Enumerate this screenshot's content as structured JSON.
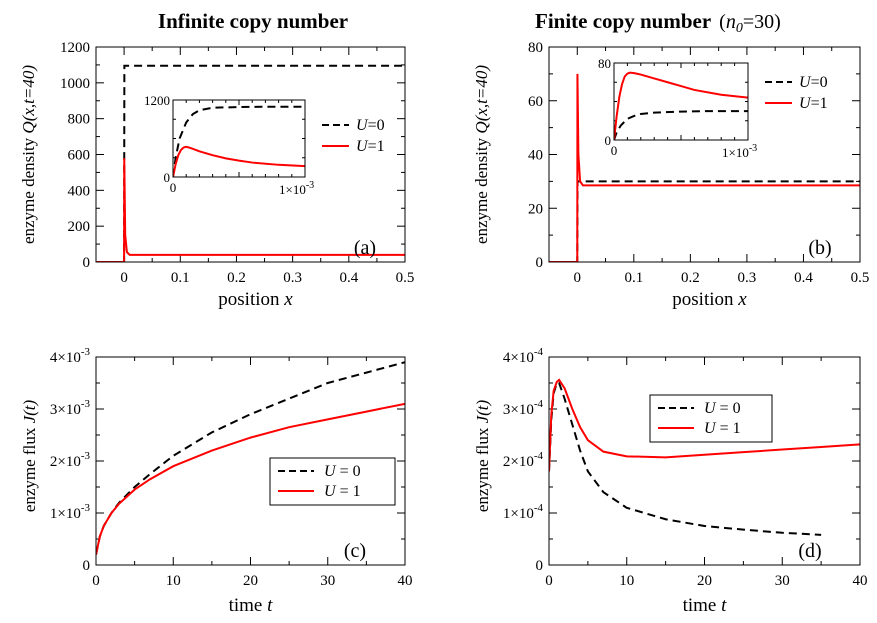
{
  "titles": {
    "left": "Infinite copy number",
    "right_main": "Finite copy number",
    "right_param": "(n0=30)"
  },
  "chart_data": [
    {
      "id": "a",
      "type": "line",
      "panel_label": "(a)",
      "xlabel": "position  x",
      "ylabel": "enzyme density  Q(x,t=40)",
      "xlim": [
        -0.05,
        0.5
      ],
      "ylim": [
        0,
        1200
      ],
      "xticks": [
        "0",
        "0.1",
        "0.2",
        "0.3",
        "0.4",
        "0.5"
      ],
      "yticks": [
        "0",
        "200",
        "400",
        "600",
        "800",
        "1000",
        "1200"
      ],
      "legend": "right",
      "series": [
        {
          "name": "U=0",
          "style": "dashed",
          "color": "#000000",
          "x": [
            -0.05,
            -0.0005,
            0.0,
            0.0005,
            0.5
          ],
          "y": [
            0,
            0,
            0,
            1095,
            1095
          ]
        },
        {
          "name": "U=1",
          "style": "solid",
          "color": "#ff0000",
          "x": [
            -0.05,
            -0.0005,
            0.0,
            0.0003,
            0.002,
            0.005,
            0.01,
            0.5
          ],
          "y": [
            0,
            0,
            0,
            580,
            150,
            55,
            40,
            40
          ]
        }
      ],
      "inset": {
        "xlim": [
          0,
          0.001
        ],
        "ylim": [
          0,
          1200
        ],
        "yticks": [
          "0",
          "1200"
        ],
        "xticks": [
          "0",
          "1×10-3"
        ],
        "series": [
          {
            "name": "U=0",
            "style": "dashed",
            "color": "#000000",
            "x": [
              0,
              2e-05,
              5e-05,
              0.0001,
              0.00015,
              0.0002,
              0.0003,
              0.0005,
              0.0007,
              0.001
            ],
            "y": [
              0,
              300,
              600,
              850,
              980,
              1040,
              1080,
              1090,
              1095,
              1095
            ]
          },
          {
            "name": "U=1",
            "style": "solid",
            "color": "#ff0000",
            "x": [
              0,
              2e-05,
              4e-05,
              6e-05,
              8e-05,
              0.0001,
              0.00012,
              0.00015,
              0.0002,
              0.0003,
              0.0004,
              0.0005,
              0.0006,
              0.0008,
              0.001
            ],
            "y": [
              0,
              200,
              340,
              420,
              460,
              470,
              460,
              440,
              400,
              340,
              290,
              255,
              225,
              190,
              170
            ]
          }
        ]
      }
    },
    {
      "id": "b",
      "type": "line",
      "panel_label": "(b)",
      "xlabel": "position  x",
      "ylabel": "enzyme density  Q(x,t=40)",
      "xlim": [
        -0.05,
        0.5
      ],
      "ylim": [
        0,
        80
      ],
      "xticks": [
        "0",
        "0.1",
        "0.2",
        "0.3",
        "0.4",
        "0.5"
      ],
      "yticks": [
        "0",
        "20",
        "40",
        "60",
        "80"
      ],
      "legend": "right",
      "series": [
        {
          "name": "U=0",
          "style": "dashed",
          "color": "#000000",
          "x": [
            -0.05,
            -0.0005,
            0.0,
            0.0005,
            0.5
          ],
          "y": [
            0,
            0,
            0,
            30,
            30
          ]
        },
        {
          "name": "U=1",
          "style": "solid",
          "color": "#ff0000",
          "x": [
            -0.05,
            -0.0005,
            0.0,
            0.0003,
            0.002,
            0.005,
            0.01,
            0.5
          ],
          "y": [
            0,
            0,
            0,
            70,
            40,
            30,
            28.5,
            28.5
          ]
        }
      ],
      "inset": {
        "xlim": [
          0,
          0.001
        ],
        "ylim": [
          0,
          80
        ],
        "yticks": [
          "0",
          "80"
        ],
        "xticks": [
          "0",
          "1×10-3"
        ],
        "series": [
          {
            "name": "U=0",
            "style": "dashed",
            "color": "#000000",
            "x": [
              0,
              2e-05,
              5e-05,
              0.0001,
              0.00015,
              0.0002,
              0.0003,
              0.0005,
              0.0007,
              0.001
            ],
            "y": [
              0,
              8,
              15,
              22,
              25,
              27,
              28.5,
              29.5,
              30,
              30
            ]
          },
          {
            "name": "U=1",
            "style": "solid",
            "color": "#ff0000",
            "x": [
              0,
              2e-05,
              4e-05,
              6e-05,
              8e-05,
              0.0001,
              0.00012,
              0.00015,
              0.0002,
              0.0003,
              0.0004,
              0.0005,
              0.0006,
              0.0008,
              0.001
            ],
            "y": [
              0,
              25,
              45,
              58,
              66,
              69,
              70,
              69.5,
              68,
              64,
              60,
              56,
              52,
              47,
              44
            ]
          }
        ]
      }
    },
    {
      "id": "c",
      "type": "line",
      "panel_label": "(c)",
      "xlabel": "time  t",
      "ylabel": "enzyme flux  J(t)",
      "xlim": [
        0,
        40
      ],
      "ylim": [
        0,
        0.004
      ],
      "xticks": [
        "0",
        "10",
        "20",
        "30",
        "40"
      ],
      "yticks": [
        {
          "mantissa": "0",
          "exp": ""
        },
        {
          "mantissa": "1×10",
          "exp": "-3"
        },
        {
          "mantissa": "2×10",
          "exp": "-3"
        },
        {
          "mantissa": "3×10",
          "exp": "-3"
        },
        {
          "mantissa": "4×10",
          "exp": "-3"
        }
      ],
      "legend": "center-right",
      "series": [
        {
          "name": "U = 0",
          "style": "dashed",
          "color": "#000000",
          "x": [
            0,
            0.5,
            1,
            2,
            3,
            5,
            7,
            10,
            15,
            20,
            25,
            30,
            35,
            40
          ],
          "y": [
            0.0002,
            0.00055,
            0.00075,
            0.001,
            0.0012,
            0.0015,
            0.00175,
            0.0021,
            0.00255,
            0.0029,
            0.0032,
            0.0035,
            0.0037,
            0.0039
          ]
        },
        {
          "name": "U = 1",
          "style": "solid",
          "color": "#ff0000",
          "x": [
            0,
            0.5,
            1,
            2,
            3,
            5,
            7,
            10,
            15,
            20,
            25,
            30,
            35,
            40
          ],
          "y": [
            0.0002,
            0.00055,
            0.00075,
            0.001,
            0.00118,
            0.00145,
            0.00165,
            0.0019,
            0.0022,
            0.00245,
            0.00265,
            0.0028,
            0.00295,
            0.0031
          ]
        }
      ]
    },
    {
      "id": "d",
      "type": "line",
      "panel_label": "(d)",
      "xlabel": "time  t",
      "ylabel": "enzyme flux  J(t)",
      "xlim": [
        0,
        40
      ],
      "ylim": [
        0,
        0.0004
      ],
      "xticks": [
        "0",
        "10",
        "20",
        "30",
        "40"
      ],
      "yticks": [
        {
          "mantissa": "0",
          "exp": ""
        },
        {
          "mantissa": "1×10",
          "exp": "-4"
        },
        {
          "mantissa": "2×10",
          "exp": "-4"
        },
        {
          "mantissa": "3×10",
          "exp": "-4"
        },
        {
          "mantissa": "4×10",
          "exp": "-4"
        }
      ],
      "legend": "top-center",
      "series": [
        {
          "name": "U = 0",
          "style": "dashed",
          "color": "#000000",
          "x": [
            0,
            0.3,
            0.6,
            1,
            1.3,
            2,
            3,
            4,
            5,
            7,
            10,
            15,
            20,
            25,
            30,
            35
          ],
          "y": [
            0.00018,
            0.00028,
            0.00033,
            0.00035,
            0.00035,
            0.00032,
            0.00027,
            0.00022,
            0.00018,
            0.00014,
            0.00011,
            8.8e-05,
            7.5e-05,
            6.8e-05,
            6.2e-05,
            5.8e-05
          ]
        },
        {
          "name": "U = 1",
          "style": "solid",
          "color": "#ff0000",
          "x": [
            0,
            0.3,
            0.6,
            1,
            1.3,
            2,
            3,
            4,
            5,
            7,
            10,
            15,
            20,
            25,
            30,
            35,
            40
          ],
          "y": [
            0.00018,
            0.00029,
            0.000335,
            0.000352,
            0.000356,
            0.00034,
            0.0003,
            0.000265,
            0.00024,
            0.000218,
            0.000209,
            0.000207,
            0.000212,
            0.000217,
            0.000222,
            0.000227,
            0.000232
          ]
        }
      ]
    }
  ]
}
